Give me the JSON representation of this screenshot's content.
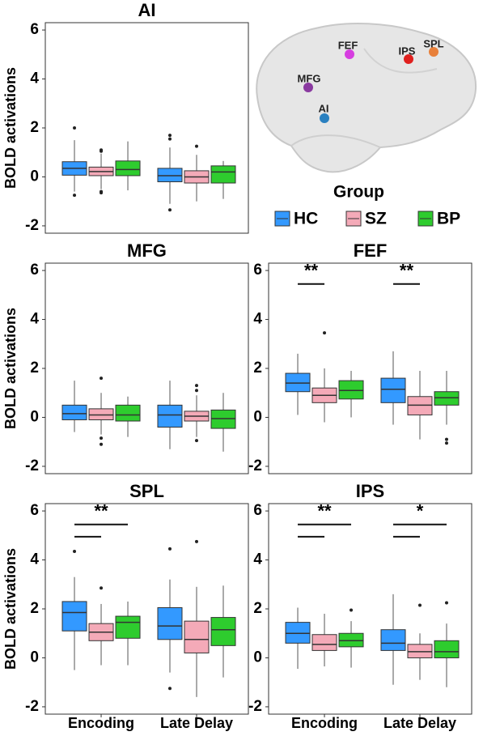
{
  "brain": {
    "labels": [
      "FEF",
      "SPL",
      "IPS",
      "MFG",
      "AI"
    ]
  },
  "legend": {
    "title": "Group",
    "names": [
      "HC",
      "SZ",
      "BP"
    ],
    "colors": [
      "#3399ff",
      "#f4aab8",
      "#2ecc2e"
    ]
  },
  "chart_data": [
    {
      "type": "box",
      "title": "AI",
      "y_label": "BOLD activations",
      "ylim": [
        -2.3,
        6.3
      ],
      "yticks": [
        -2,
        0,
        2,
        4,
        6
      ],
      "series": [
        {
          "boxes": [
            {
              "min": -0.6,
              "q1": 0.07,
              "median": 0.35,
              "q3": 0.62,
              "max": 1.5,
              "outliers": [
                2.0,
                -0.75
              ]
            },
            {
              "min": -1.1,
              "q1": -0.2,
              "median": 0.05,
              "q3": 0.35,
              "max": 1.2,
              "outliers": [
                1.7,
                1.55,
                -1.35
              ]
            }
          ]
        },
        {
          "boxes": [
            {
              "min": -0.5,
              "q1": 0.05,
              "median": 0.22,
              "q3": 0.4,
              "max": 0.95,
              "outliers": [
                1.1,
                1.05,
                -0.6,
                -0.65
              ]
            },
            {
              "min": -1.0,
              "q1": -0.25,
              "median": 0.0,
              "q3": 0.25,
              "max": 0.9,
              "outliers": [
                1.25
              ]
            }
          ]
        },
        {
          "boxes": [
            {
              "min": -0.55,
              "q1": 0.05,
              "median": 0.3,
              "q3": 0.65,
              "max": 1.45,
              "outliers": []
            },
            {
              "min": -0.9,
              "q1": -0.25,
              "median": 0.2,
              "q3": 0.45,
              "max": 0.65,
              "outliers": []
            }
          ]
        }
      ]
    },
    {
      "type": "box",
      "title": "MFG",
      "y_label": "BOLD activations",
      "ylim": [
        -2.3,
        6.3
      ],
      "yticks": [
        -2,
        0,
        2,
        4,
        6
      ],
      "series": [
        {
          "boxes": [
            {
              "min": -0.6,
              "q1": -0.1,
              "median": 0.15,
              "q3": 0.5,
              "max": 1.5,
              "outliers": []
            },
            {
              "min": -1.3,
              "q1": -0.4,
              "median": 0.1,
              "q3": 0.5,
              "max": 1.5,
              "outliers": []
            }
          ]
        },
        {
          "boxes": [
            {
              "min": -0.7,
              "q1": -0.1,
              "median": 0.1,
              "q3": 0.35,
              "max": 1.0,
              "outliers": [
                1.6,
                -0.85,
                -1.1
              ]
            },
            {
              "min": -0.8,
              "q1": -0.15,
              "median": 0.05,
              "q3": 0.25,
              "max": 0.9,
              "outliers": [
                1.3,
                1.1,
                -0.95
              ]
            }
          ]
        },
        {
          "boxes": [
            {
              "min": -0.8,
              "q1": -0.15,
              "median": 0.1,
              "q3": 0.5,
              "max": 0.85,
              "outliers": []
            },
            {
              "min": -1.4,
              "q1": -0.45,
              "median": -0.05,
              "q3": 0.3,
              "max": 1.0,
              "outliers": []
            }
          ]
        }
      ]
    },
    {
      "type": "box",
      "title": "FEF",
      "ylim": [
        -2.3,
        6.3
      ],
      "yticks": [
        -2,
        0,
        2,
        4,
        6
      ],
      "significance": [
        {
          "category": 0,
          "label": "**",
          "pairs": [
            [
              0,
              1
            ]
          ]
        },
        {
          "category": 1,
          "label": "**",
          "pairs": [
            [
              0,
              1
            ]
          ]
        }
      ],
      "series": [
        {
          "boxes": [
            {
              "min": 0.1,
              "q1": 1.05,
              "median": 1.4,
              "q3": 1.8,
              "max": 2.6,
              "outliers": []
            },
            {
              "min": -0.3,
              "q1": 0.6,
              "median": 1.15,
              "q3": 1.6,
              "max": 2.7,
              "outliers": []
            }
          ]
        },
        {
          "boxes": [
            {
              "min": -0.2,
              "q1": 0.6,
              "median": 0.9,
              "q3": 1.2,
              "max": 2.0,
              "outliers": [
                3.45
              ]
            },
            {
              "min": -0.9,
              "q1": 0.1,
              "median": 0.5,
              "q3": 0.85,
              "max": 1.9,
              "outliers": []
            }
          ]
        },
        {
          "boxes": [
            {
              "min": 0.0,
              "q1": 0.75,
              "median": 1.1,
              "q3": 1.5,
              "max": 1.9,
              "outliers": []
            },
            {
              "min": -0.3,
              "q1": 0.5,
              "median": 0.8,
              "q3": 1.05,
              "max": 1.9,
              "outliers": [
                -0.9,
                -1.05
              ]
            }
          ]
        }
      ]
    },
    {
      "type": "box",
      "title": "SPL",
      "y_label": "BOLD activations",
      "ylim": [
        -2.3,
        6.3
      ],
      "yticks": [
        -2,
        0,
        2,
        4,
        6
      ],
      "categories": [
        "Encoding",
        "Late Delay"
      ],
      "significance": [
        {
          "category": 0,
          "label": "**",
          "pairs": [
            [
              0,
              1
            ],
            [
              0,
              2
            ]
          ]
        }
      ],
      "series": [
        {
          "boxes": [
            {
              "min": -0.5,
              "q1": 1.1,
              "median": 1.85,
              "q3": 2.3,
              "max": 3.3,
              "outliers": [
                4.35
              ]
            },
            {
              "min": -0.6,
              "q1": 0.75,
              "median": 1.3,
              "q3": 2.05,
              "max": 3.2,
              "outliers": [
                4.45,
                -1.25
              ]
            }
          ]
        },
        {
          "boxes": [
            {
              "min": -0.3,
              "q1": 0.7,
              "median": 1.05,
              "q3": 1.4,
              "max": 2.2,
              "outliers": [
                2.85
              ]
            },
            {
              "min": -1.6,
              "q1": 0.2,
              "median": 0.75,
              "q3": 1.5,
              "max": 2.9,
              "outliers": [
                4.75
              ]
            }
          ]
        },
        {
          "boxes": [
            {
              "min": -0.3,
              "q1": 0.8,
              "median": 1.45,
              "q3": 1.7,
              "max": 2.3,
              "outliers": []
            },
            {
              "min": -0.8,
              "q1": 0.5,
              "median": 1.15,
              "q3": 1.65,
              "max": 2.95,
              "outliers": []
            }
          ]
        }
      ]
    },
    {
      "type": "box",
      "title": "IPS",
      "ylim": [
        -2.3,
        6.3
      ],
      "yticks": [
        -2,
        0,
        2,
        4,
        6
      ],
      "categories": [
        "Encoding",
        "Late Delay"
      ],
      "significance": [
        {
          "category": 0,
          "label": "**",
          "pairs": [
            [
              0,
              1
            ],
            [
              0,
              2
            ]
          ]
        },
        {
          "category": 1,
          "label": "*",
          "pairs": [
            [
              0,
              1
            ],
            [
              0,
              2
            ]
          ]
        }
      ],
      "series": [
        {
          "boxes": [
            {
              "min": -0.45,
              "q1": 0.6,
              "median": 1.0,
              "q3": 1.45,
              "max": 2.05,
              "outliers": []
            },
            {
              "min": -1.1,
              "q1": 0.3,
              "median": 0.6,
              "q3": 1.15,
              "max": 2.6,
              "outliers": []
            }
          ]
        },
        {
          "boxes": [
            {
              "min": -0.35,
              "q1": 0.3,
              "median": 0.55,
              "q3": 0.95,
              "max": 1.8,
              "outliers": []
            },
            {
              "min": -0.9,
              "q1": 0.0,
              "median": 0.25,
              "q3": 0.55,
              "max": 1.0,
              "outliers": [
                2.15
              ]
            }
          ]
        },
        {
          "boxes": [
            {
              "min": -0.4,
              "q1": 0.45,
              "median": 0.7,
              "q3": 1.0,
              "max": 1.5,
              "outliers": [
                1.95
              ]
            },
            {
              "min": -1.2,
              "q1": 0.0,
              "median": 0.25,
              "q3": 0.7,
              "max": 1.4,
              "outliers": [
                2.25
              ]
            }
          ]
        }
      ]
    }
  ]
}
